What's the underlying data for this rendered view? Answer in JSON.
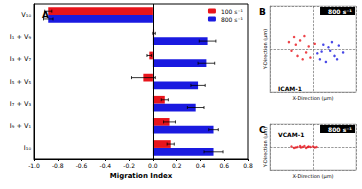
{
  "chart_data": [
    {
      "type": "bar",
      "title": "A",
      "orientation": "horizontal",
      "categories": [
        "V₁₀",
        "I₁ + V₉",
        "I₃ + V₇",
        "I₅ + V₅",
        "I₇ + V₃",
        "I₉ + V₁",
        "I₁₀"
      ],
      "series": [
        {
          "name": "100 s⁻¹",
          "color": "#e8141b",
          "values": [
            -0.88,
            0.01,
            -0.03,
            -0.08,
            0.1,
            0.14,
            0.15
          ],
          "errors": [
            0.03,
            0.01,
            0.02,
            0.1,
            0.03,
            0.05,
            0.03
          ]
        },
        {
          "name": "800 s⁻¹",
          "color": "#1a1ae0",
          "values": [
            -0.88,
            0.46,
            0.45,
            0.38,
            0.36,
            0.51,
            0.51
          ],
          "errors": [
            0.04,
            0.07,
            0.07,
            0.06,
            0.07,
            0.04,
            0.08
          ]
        }
      ],
      "xlabel": "Migration Index",
      "xlim": [
        -1.0,
        0.8
      ],
      "xticks": [
        {
          "value": -1.0,
          "label": "-1.0"
        },
        {
          "value": -0.8,
          "label": "-0.8"
        },
        {
          "value": -0.6,
          "label": "-0.6"
        },
        {
          "value": -0.4,
          "label": "-0.4"
        },
        {
          "value": -0.2,
          "label": "-0.2"
        },
        {
          "value": 0,
          "label": "0.0"
        },
        {
          "value": 0.2,
          "label": "0.2"
        },
        {
          "value": 0.4,
          "label": "0.4"
        },
        {
          "value": 0.6,
          "label": "0.6"
        },
        {
          "value": 0.8,
          "label": "0.8"
        }
      ],
      "legend": "upper right",
      "grid": false
    },
    {
      "type": "scatter",
      "title": "B",
      "annotations": [
        "ICAM-1",
        "800 s⁻¹"
      ],
      "xlabel": "X-Direction (µm)",
      "ylabel": "Y-Direction (µm)",
      "xlim": [
        -50,
        50
      ],
      "ylim": [
        -50,
        50
      ],
      "tick_labels": false,
      "grid": true,
      "series": [
        {
          "color": "#e8141b",
          "x": [
            -20,
            -15,
            -25,
            -10,
            -18,
            -5,
            -12,
            -28,
            -8,
            -22,
            2,
            -3
          ],
          "values": [
            5,
            10,
            -2,
            15,
            -8,
            3,
            -12,
            8,
            -4,
            14,
            6,
            -10
          ]
        },
        {
          "color": "#1a1ae0",
          "x": [
            10,
            18,
            25,
            8,
            30,
            15,
            22,
            5,
            35,
            12,
            28,
            20
          ],
          "values": [
            -3,
            2,
            -8,
            -12,
            4,
            -15,
            8,
            -5,
            -4,
            5,
            -12,
            -2
          ]
        }
      ]
    },
    {
      "type": "scatter",
      "title": "C",
      "annotations": [
        "VCAM-1",
        "800 s⁻¹"
      ],
      "xlabel": "X-Direction (µm)",
      "ylabel": "Y-Direction (µm)",
      "xlim": [
        -50,
        50
      ],
      "ylim": [
        -50,
        50
      ],
      "tick_labels": false,
      "grid": true,
      "series": [
        {
          "color": "#e8141b",
          "x": [
            -25,
            -20,
            -15,
            -12,
            -8,
            -5,
            -3,
            0,
            2,
            -18,
            -10,
            -22,
            -6,
            4,
            -14
          ],
          "values": [
            1,
            -1,
            2,
            0,
            -2,
            1,
            0,
            1,
            -1,
            0,
            2,
            -2,
            0,
            0,
            -1
          ]
        }
      ]
    }
  ]
}
